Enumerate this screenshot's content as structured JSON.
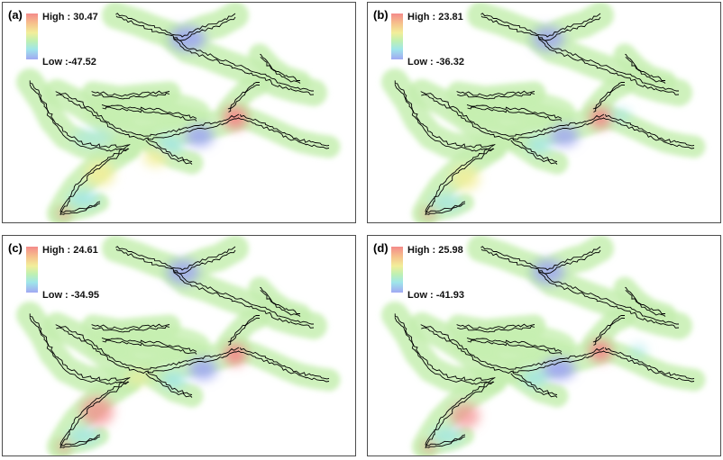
{
  "panels": [
    {
      "label": "(a)",
      "high": "High : 30.47",
      "low": "Low :-47.52"
    },
    {
      "label": "(b)",
      "high": "High : 23.81",
      "low": "Low : -36.32"
    },
    {
      "label": "(c)",
      "high": "High : 24.61",
      "low": "Low : -34.95"
    },
    {
      "label": "(d)",
      "high": "High : 25.98",
      "low": "Low : -41.93"
    }
  ],
  "colors": {
    "high": "#f48a8a",
    "mid": "#f2ee9a",
    "base": "#c5efb0",
    "cyan": "#9fe6ea",
    "low": "#a0a8f2",
    "outline": "#000000"
  }
}
